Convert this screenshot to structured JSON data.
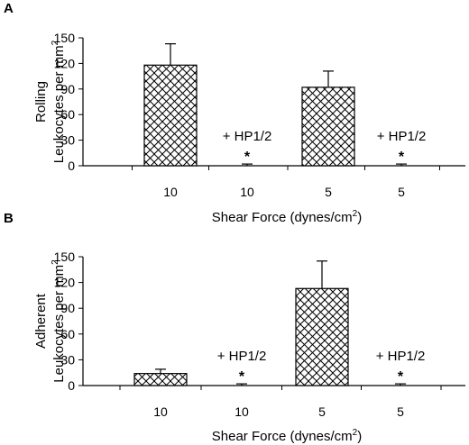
{
  "chart_data": [
    {
      "panel_label": "A",
      "type": "bar",
      "categories": [
        "10",
        "10",
        "5",
        "5"
      ],
      "values": [
        118,
        0,
        92,
        0
      ],
      "errors": [
        25,
        2,
        19,
        2
      ],
      "annotations": [
        "",
        "+ HP1/2",
        "",
        "+ HP1/2"
      ],
      "significance": [
        "",
        "*",
        "",
        "*"
      ],
      "ylabel_line1": "Rolling",
      "ylabel_line2": "Leukocytes per mm",
      "ylabel_sup": "2",
      "xlabel": "Shear Force (dynes/cm",
      "xlabel_sup": "2",
      "xlabel_end": ")",
      "ylim": [
        0,
        150
      ],
      "yticks": [
        "0",
        "30",
        "60",
        "90",
        "120",
        "150"
      ],
      "bar_fill": "crosshatch",
      "grid": false
    },
    {
      "panel_label": "B",
      "type": "bar",
      "categories": [
        "10",
        "10",
        "5",
        "5"
      ],
      "values": [
        14,
        0,
        113,
        0
      ],
      "errors": [
        5,
        2,
        32,
        2
      ],
      "annotations": [
        "",
        "+ HP1/2",
        "",
        "+ HP1/2"
      ],
      "significance": [
        "",
        "*",
        "",
        "*"
      ],
      "ylabel_line1": "Adherent",
      "ylabel_line2": "Leukocytes per mm",
      "ylabel_sup": "2",
      "xlabel": "Shear Force (dynes/cm",
      "xlabel_sup": "2",
      "xlabel_end": ")",
      "ylim": [
        0,
        150
      ],
      "yticks": [
        "0",
        "30",
        "60",
        "90",
        "120",
        "150"
      ],
      "bar_fill": "crosshatch",
      "grid": false
    }
  ]
}
